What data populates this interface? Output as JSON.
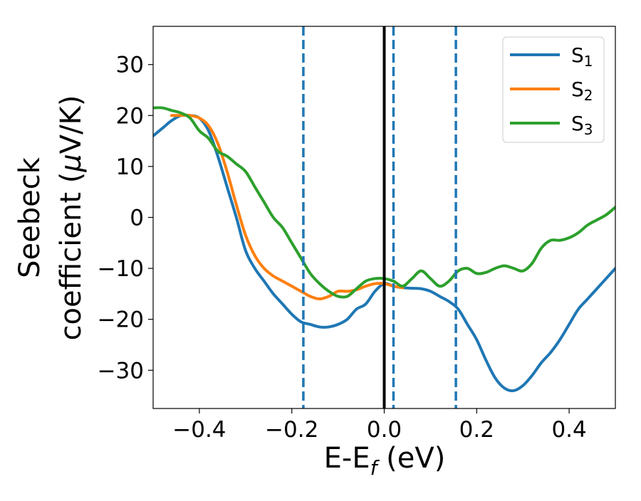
{
  "chart_data": {
    "type": "line",
    "title": "",
    "xlabel": {
      "main": "E-E",
      "sub": "f",
      "suffix": " (eV)"
    },
    "ylabel": {
      "line1": "Seebeck",
      "line2_prefix": "coefficient  (",
      "line2_mu": "μ",
      "line2_suffix": "V/K)"
    },
    "xlim": [
      -0.5,
      0.5
    ],
    "ylim": [
      -37.5,
      37.5
    ],
    "xticks": [
      {
        "value": -0.4,
        "label": "−0.4"
      },
      {
        "value": -0.2,
        "label": "−0.2"
      },
      {
        "value": 0.0,
        "label": "0.0"
      },
      {
        "value": 0.2,
        "label": "0.2"
      },
      {
        "value": 0.4,
        "label": "0.4"
      }
    ],
    "yticks": [
      {
        "value": -30,
        "label": "−30"
      },
      {
        "value": -20,
        "label": "−20"
      },
      {
        "value": -10,
        "label": "−10"
      },
      {
        "value": 0,
        "label": "0"
      },
      {
        "value": 10,
        "label": "10"
      },
      {
        "value": 20,
        "label": "20"
      },
      {
        "value": 30,
        "label": "30"
      }
    ],
    "grid": false,
    "legend_position": "top-right",
    "vertical_lines": [
      {
        "x": -0.175,
        "style": "dashed",
        "color": "#1f77b4"
      },
      {
        "x": 0.0,
        "style": "solid",
        "color": "#000000"
      },
      {
        "x": 0.02,
        "style": "dashed",
        "color": "#1f77b4"
      },
      {
        "x": 0.155,
        "style": "dashed",
        "color": "#1f77b4"
      }
    ],
    "series": [
      {
        "name": "S",
        "subscript": "1",
        "color": "#1f77b4",
        "x": [
          -0.5,
          -0.48,
          -0.46,
          -0.44,
          -0.42,
          -0.4,
          -0.38,
          -0.36,
          -0.34,
          -0.32,
          -0.3,
          -0.28,
          -0.26,
          -0.24,
          -0.22,
          -0.2,
          -0.18,
          -0.16,
          -0.14,
          -0.12,
          -0.1,
          -0.08,
          -0.06,
          -0.04,
          -0.02,
          0.0,
          0.02,
          0.04,
          0.06,
          0.08,
          0.1,
          0.12,
          0.14,
          0.16,
          0.18,
          0.2,
          0.22,
          0.24,
          0.26,
          0.28,
          0.3,
          0.32,
          0.34,
          0.36,
          0.38,
          0.4,
          0.42,
          0.44,
          0.46,
          0.48,
          0.5
        ],
        "values": [
          16.0,
          17.5,
          19.0,
          20.0,
          20.0,
          19.5,
          17.0,
          12.0,
          6.0,
          0.0,
          -6.5,
          -10.0,
          -12.5,
          -15.0,
          -17.0,
          -19.0,
          -20.5,
          -21.0,
          -21.5,
          -21.5,
          -21.0,
          -20.0,
          -18.0,
          -17.0,
          -14.5,
          -13.0,
          -13.5,
          -13.8,
          -13.9,
          -14.0,
          -14.5,
          -15.5,
          -16.5,
          -18.0,
          -21.0,
          -24.0,
          -28.0,
          -31.5,
          -33.5,
          -34.0,
          -33.0,
          -31.0,
          -28.5,
          -26.5,
          -24.0,
          -21.0,
          -18.0,
          -16.0,
          -14.0,
          -12.0,
          -10.0
        ]
      },
      {
        "name": "S",
        "subscript": "2",
        "color": "#ff7f0e",
        "x": [
          -0.46,
          -0.44,
          -0.42,
          -0.4,
          -0.38,
          -0.36,
          -0.34,
          -0.32,
          -0.3,
          -0.28,
          -0.26,
          -0.24,
          -0.22,
          -0.2,
          -0.18,
          -0.16,
          -0.14,
          -0.12,
          -0.1,
          -0.08,
          -0.06,
          -0.04,
          -0.02,
          0.0,
          0.02,
          0.04
        ],
        "values": [
          20.0,
          20.0,
          20.0,
          19.5,
          18.0,
          14.5,
          9.0,
          2.5,
          -3.5,
          -7.5,
          -10.0,
          -11.5,
          -12.5,
          -13.5,
          -14.5,
          -15.5,
          -16.0,
          -15.5,
          -14.5,
          -14.5,
          -14.2,
          -13.5,
          -13.0,
          -13.0,
          -13.5,
          -13.8
        ]
      },
      {
        "name": "S",
        "subscript": "3",
        "color": "#2ca02c",
        "x": [
          -0.5,
          -0.48,
          -0.46,
          -0.44,
          -0.42,
          -0.4,
          -0.38,
          -0.36,
          -0.34,
          -0.32,
          -0.3,
          -0.28,
          -0.26,
          -0.24,
          -0.22,
          -0.2,
          -0.18,
          -0.16,
          -0.14,
          -0.12,
          -0.1,
          -0.08,
          -0.06,
          -0.04,
          -0.02,
          0.0,
          0.02,
          0.04,
          0.06,
          0.08,
          0.1,
          0.12,
          0.14,
          0.16,
          0.18,
          0.2,
          0.22,
          0.24,
          0.26,
          0.28,
          0.3,
          0.32,
          0.34,
          0.36,
          0.38,
          0.4,
          0.42,
          0.44,
          0.46,
          0.48,
          0.5
        ],
        "values": [
          21.5,
          21.5,
          21.0,
          20.5,
          19.5,
          17.0,
          15.5,
          13.0,
          12.0,
          10.5,
          9.0,
          6.0,
          3.0,
          0.0,
          -2.0,
          -5.0,
          -8.0,
          -11.0,
          -13.0,
          -14.5,
          -15.5,
          -15.5,
          -14.0,
          -12.5,
          -12.0,
          -12.0,
          -12.5,
          -13.5,
          -12.0,
          -10.5,
          -12.0,
          -13.5,
          -12.5,
          -10.5,
          -10.0,
          -11.0,
          -10.8,
          -10.0,
          -9.5,
          -10.0,
          -10.5,
          -9.0,
          -6.0,
          -4.5,
          -4.5,
          -4.0,
          -3.0,
          -1.5,
          -0.5,
          0.5,
          2.0
        ]
      }
    ]
  }
}
